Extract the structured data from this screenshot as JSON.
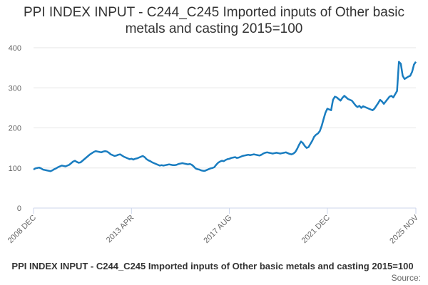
{
  "chart_data": {
    "type": "line",
    "title": "PPI INDEX INPUT - C244_C245 Imported inputs of Other basic metals and casting 2015=100",
    "footer": "PPI INDEX INPUT - C244_C245 Imported inputs of Other basic metals and casting 2015=100",
    "source": "Source:",
    "x": [
      "2008 DEC",
      "2009 JAN",
      "2009 FEB",
      "2009 MAR",
      "2009 APR",
      "2009 MAY",
      "2009 JUN",
      "2009 JUL",
      "2009 AUG",
      "2009 SEP",
      "2009 OCT",
      "2009 NOV",
      "2009 DEC",
      "2010 JAN",
      "2010 FEB",
      "2010 MAR",
      "2010 APR",
      "2010 MAY",
      "2010 JUN",
      "2010 JUL",
      "2010 AUG",
      "2010 SEP",
      "2010 OCT",
      "2010 NOV",
      "2010 DEC",
      "2011 JAN",
      "2011 FEB",
      "2011 MAR",
      "2011 APR",
      "2011 MAY",
      "2011 JUN",
      "2011 JUL",
      "2011 AUG",
      "2011 SEP",
      "2011 OCT",
      "2011 NOV",
      "2011 DEC",
      "2012 JAN",
      "2012 FEB",
      "2012 MAR",
      "2012 APR",
      "2012 MAY",
      "2012 JUN",
      "2012 JUL",
      "2012 AUG",
      "2012 SEP",
      "2012 OCT",
      "2012 NOV",
      "2012 DEC",
      "2013 JAN",
      "2013 FEB",
      "2013 MAR",
      "2013 APR",
      "2013 MAY",
      "2013 JUN",
      "2013 JUL",
      "2013 AUG",
      "2013 SEP",
      "2013 OCT",
      "2013 NOV",
      "2013 DEC",
      "2014 JAN",
      "2014 FEB",
      "2014 MAR",
      "2014 APR",
      "2014 MAY",
      "2014 JUN",
      "2014 JUL",
      "2014 AUG",
      "2014 SEP",
      "2014 OCT",
      "2014 NOV",
      "2014 DEC",
      "2015 JAN",
      "2015 FEB",
      "2015 MAR",
      "2015 APR",
      "2015 MAY",
      "2015 JUN",
      "2015 JUL",
      "2015 AUG",
      "2015 SEP",
      "2015 OCT",
      "2015 NOV",
      "2015 DEC",
      "2016 JAN",
      "2016 FEB",
      "2016 MAR",
      "2016 APR",
      "2016 MAY",
      "2016 JUN",
      "2016 JUL",
      "2016 AUG",
      "2016 SEP",
      "2016 OCT",
      "2016 NOV",
      "2016 DEC",
      "2017 JAN",
      "2017 FEB",
      "2017 MAR",
      "2017 APR",
      "2017 MAY",
      "2017 JUN",
      "2017 JUL",
      "2017 AUG",
      "2017 SEP",
      "2017 OCT",
      "2017 NOV",
      "2017 DEC",
      "2018 JAN",
      "2018 FEB",
      "2018 MAR",
      "2018 APR",
      "2018 MAY",
      "2018 JUN",
      "2018 JUL",
      "2018 AUG",
      "2018 SEP",
      "2018 OCT",
      "2018 NOV",
      "2018 DEC",
      "2019 JAN",
      "2019 FEB",
      "2019 MAR",
      "2019 APR",
      "2019 MAY",
      "2019 JUN",
      "2019 JUL",
      "2019 AUG",
      "2019 SEP",
      "2019 OCT",
      "2019 NOV",
      "2019 DEC",
      "2020 JAN",
      "2020 FEB",
      "2020 MAR",
      "2020 APR",
      "2020 MAY",
      "2020 JUN",
      "2020 JUL",
      "2020 AUG",
      "2020 SEP",
      "2020 OCT",
      "2020 NOV",
      "2020 DEC",
      "2021 JAN",
      "2021 FEB",
      "2021 MAR",
      "2021 APR",
      "2021 MAY",
      "2021 JUN",
      "2021 JUL",
      "2021 AUG",
      "2021 SEP",
      "2021 OCT",
      "2021 NOV",
      "2021 DEC",
      "2022 JAN",
      "2022 FEB",
      "2022 MAR",
      "2022 APR",
      "2022 MAY",
      "2022 JUN",
      "2022 JUL",
      "2022 AUG",
      "2022 SEP",
      "2022 OCT",
      "2022 NOV",
      "2022 DEC",
      "2023 JAN",
      "2023 FEB",
      "2023 MAR",
      "2023 APR",
      "2023 MAY",
      "2023 JUN",
      "2023 JUL",
      "2023 AUG",
      "2023 SEP",
      "2023 OCT",
      "2023 NOV",
      "2023 DEC",
      "2024 JAN",
      "2024 FEB",
      "2024 MAR",
      "2024 APR",
      "2024 MAY",
      "2024 JUN",
      "2024 JUL",
      "2024 AUG",
      "2024 SEP",
      "2024 OCT",
      "2024 NOV",
      "2024 DEC",
      "2025 JAN",
      "2025 FEB",
      "2025 MAR",
      "2025 APR",
      "2025 MAY",
      "2025 JUN",
      "2025 JUL",
      "2025 AUG",
      "2025 SEP",
      "2025 OCT",
      "2025 NOV"
    ],
    "series": [
      {
        "color": "#1a7dc0",
        "values": [
          96,
          99,
          100,
          101,
          99,
          96,
          95,
          94,
          93,
          92,
          94,
          97,
          99,
          102,
          104,
          106,
          105,
          104,
          106,
          108,
          112,
          116,
          118,
          115,
          113,
          114,
          118,
          122,
          126,
          130,
          134,
          137,
          140,
          142,
          141,
          140,
          139,
          141,
          142,
          141,
          138,
          134,
          132,
          130,
          131,
          133,
          134,
          131,
          128,
          126,
          124,
          122,
          123,
          121,
          123,
          124,
          126,
          128,
          130,
          127,
          122,
          119,
          117,
          114,
          112,
          110,
          108,
          106,
          107,
          106,
          107,
          108,
          109,
          108,
          107,
          107,
          108,
          110,
          111,
          112,
          111,
          110,
          109,
          110,
          108,
          104,
          99,
          97,
          96,
          94,
          93,
          93,
          95,
          97,
          99,
          100,
          102,
          108,
          113,
          116,
          118,
          117,
          120,
          122,
          123,
          125,
          126,
          127,
          125,
          126,
          128,
          130,
          131,
          132,
          133,
          132,
          133,
          134,
          133,
          132,
          131,
          133,
          136,
          138,
          139,
          138,
          137,
          136,
          137,
          138,
          137,
          136,
          137,
          138,
          139,
          137,
          135,
          134,
          136,
          140,
          148,
          158,
          166,
          162,
          155,
          150,
          152,
          160,
          168,
          178,
          183,
          186,
          192,
          205,
          222,
          238,
          248,
          246,
          244,
          270,
          278,
          276,
          272,
          268,
          275,
          280,
          276,
          272,
          270,
          268,
          262,
          256,
          252,
          255,
          250,
          254,
          252,
          250,
          248,
          246,
          244,
          248,
          255,
          262,
          270,
          266,
          260,
          266,
          272,
          278,
          280,
          276,
          284,
          292,
          365,
          360,
          330,
          322,
          325,
          328,
          330,
          340,
          358,
          365
        ]
      }
    ],
    "xticks": [
      "2008 DEC",
      "2013 APR",
      "2017 AUG",
      "2021 DEC",
      "2025 NOV"
    ],
    "ylim": [
      0,
      400
    ],
    "yticks": [
      0,
      100,
      200,
      300,
      400
    ],
    "grid": true
  }
}
